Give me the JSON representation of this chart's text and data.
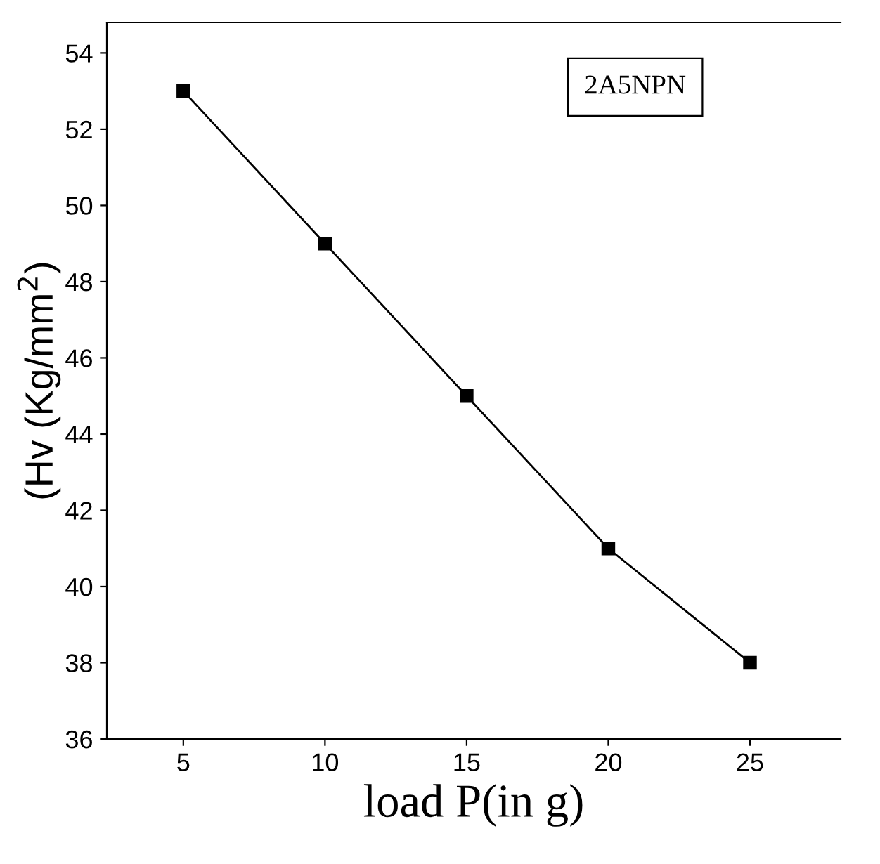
{
  "chart_data": {
    "type": "line",
    "xlabel": "load P(in g)",
    "ylabel": "(Hv (Kg/mm$^{2}$)",
    "x": [
      5,
      10,
      15,
      20,
      25
    ],
    "series": [
      {
        "color": "#000000",
        "values": [
          53,
          49,
          45,
          41,
          38
        ]
      }
    ],
    "xlim": [
      2.3,
      28.2
    ],
    "xticks": [
      5,
      10,
      15,
      20,
      25
    ],
    "ylim": [
      36,
      54.8
    ],
    "yticks": [
      36,
      38,
      40,
      42,
      44,
      46,
      48,
      50,
      52,
      54
    ],
    "marker": "square",
    "line_style": "solid",
    "grid": false,
    "legend": false,
    "annotations": [
      "2A5NPN"
    ]
  }
}
